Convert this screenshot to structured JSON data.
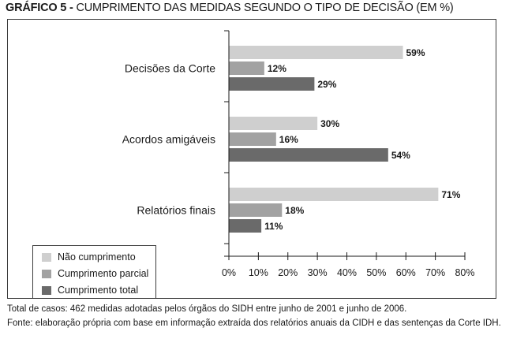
{
  "title": {
    "prefix": "GRÁFICO 5 - ",
    "text": "CUMPRIMENTO DAS MEDIDAS SEGUNDO O TIPO DE DECISÃO (EM %)"
  },
  "colors": {
    "nao_cumprimento": "#cfcfcf",
    "cumprimento_parcial": "#a2a2a2",
    "cumprimento_total": "#6a6a6a",
    "axis": "#1a1a1a",
    "frame": "#3c3c3c"
  },
  "chart_data": {
    "type": "bar",
    "orientation": "horizontal",
    "title": "CUMPRIMENTO DAS MEDIDAS SEGUNDO O TIPO DE DECISÃO (EM %)",
    "categories": [
      "Decisões da Corte",
      "Acordos amigáveis",
      "Relatórios finais"
    ],
    "series": [
      {
        "name": "Não cumprimento",
        "values": [
          59,
          30,
          71
        ],
        "labels": [
          "59%",
          "30%",
          "71%"
        ]
      },
      {
        "name": "Cumprimento parcial",
        "values": [
          12,
          16,
          18
        ],
        "labels": [
          "12%",
          "16%",
          "18%"
        ]
      },
      {
        "name": "Cumprimento total",
        "values": [
          29,
          54,
          11
        ],
        "labels": [
          "29%",
          "54%",
          "11%"
        ]
      }
    ],
    "xlim": [
      0,
      80
    ],
    "xticks": [
      0,
      10,
      20,
      30,
      40,
      50,
      60,
      70,
      80
    ],
    "xtick_labels": [
      "0%",
      "10%",
      "20%",
      "30%",
      "40%",
      "50%",
      "60%",
      "70%",
      "80%"
    ],
    "xlabel": "",
    "ylabel": "",
    "grid": false,
    "legend_position": "bottom-left"
  },
  "footnotes": [
    "Total de casos: 462 medidas adotadas pelos órgãos do SIDH entre junho de 2001 e junho de 2006.",
    "Fonte: elaboração própria com base em informação extraída dos relatórios anuais da CIDH e das sentenças da Corte IDH."
  ]
}
